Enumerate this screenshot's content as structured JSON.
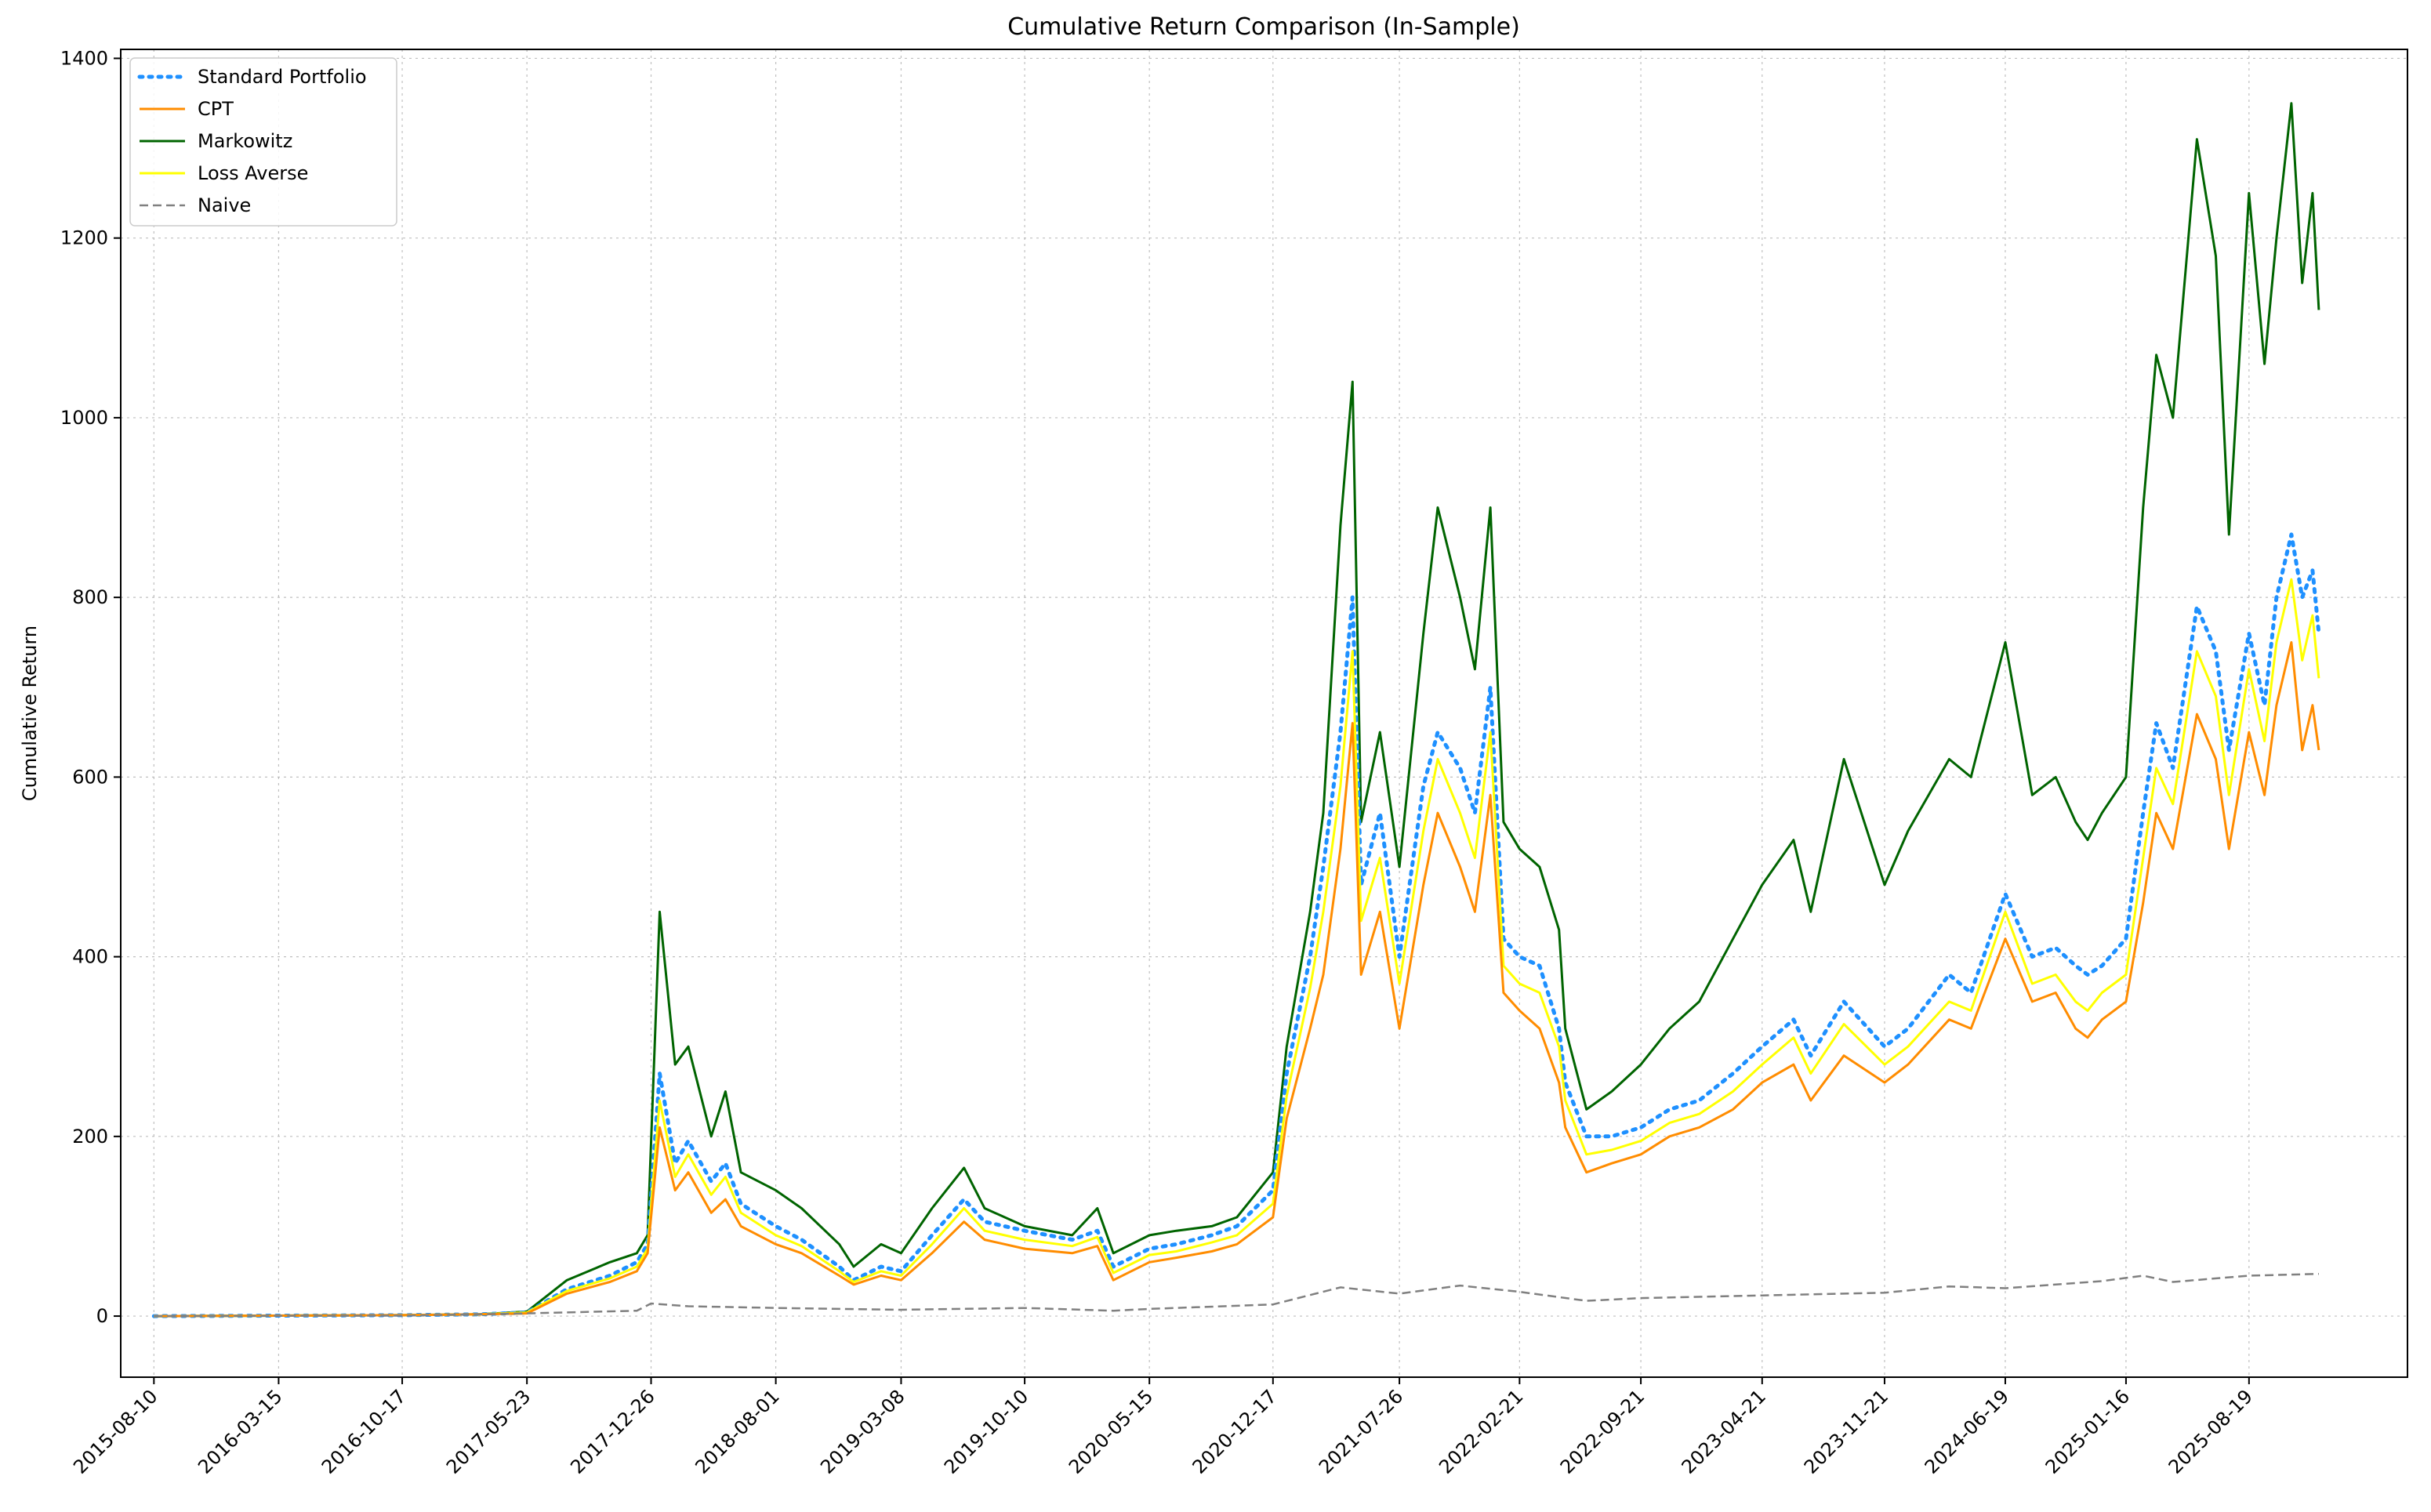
{
  "chart_data": {
    "type": "line",
    "title": "Cumulative Return Comparison (In-Sample)",
    "xlabel": "",
    "ylabel": "Cumulative Return",
    "ylim": [
      -68,
      1410
    ],
    "yticks": [
      0,
      200,
      400,
      600,
      800,
      1000,
      1200,
      1400
    ],
    "xticks": [
      "2015-08-10",
      "2016-03-15",
      "2016-10-17",
      "2017-05-23",
      "2017-12-26",
      "2018-08-01",
      "2019-03-08",
      "2019-10-10",
      "2020-05-15",
      "2020-12-17",
      "2021-07-26",
      "2022-02-21",
      "2022-09-21",
      "2023-04-21",
      "2023-11-21",
      "2024-06-19",
      "2025-01-16",
      "2025-08-19"
    ],
    "xlim": [
      "2015-06-13",
      "2026-05-23"
    ],
    "grid": true,
    "legend_position": "upper-left",
    "series": [
      {
        "name": "Standard Portfolio",
        "color": "#1e90ff",
        "style": "dotted",
        "x": [
          "2015-08-10",
          "2016-03-15",
          "2016-10-17",
          "2017-03-01",
          "2017-05-23",
          "2017-08-01",
          "2017-10-15",
          "2017-12-01",
          "2017-12-20",
          "2018-01-10",
          "2018-02-06",
          "2018-03-01",
          "2018-04-10",
          "2018-05-05",
          "2018-06-01",
          "2018-08-01",
          "2018-09-15",
          "2018-11-20",
          "2018-12-15",
          "2019-02-01",
          "2019-03-08",
          "2019-05-01",
          "2019-06-26",
          "2019-08-01",
          "2019-10-10",
          "2020-01-01",
          "2020-02-14",
          "2020-03-13",
          "2020-05-15",
          "2020-07-01",
          "2020-09-01",
          "2020-10-15",
          "2020-12-17",
          "2021-01-10",
          "2021-02-20",
          "2021-03-15",
          "2021-04-14",
          "2021-05-05",
          "2021-05-20",
          "2021-06-22",
          "2021-07-26",
          "2021-09-06",
          "2021-10-01",
          "2021-11-09",
          "2021-12-05",
          "2022-01-01",
          "2022-01-24",
          "2022-02-21",
          "2022-03-28",
          "2022-05-01",
          "2022-05-12",
          "2022-06-18",
          "2022-08-01",
          "2022-09-21",
          "2022-11-10",
          "2023-01-01",
          "2023-03-01",
          "2023-04-21",
          "2023-06-15",
          "2023-07-15",
          "2023-09-11",
          "2023-11-21",
          "2024-01-01",
          "2024-03-13",
          "2024-04-20",
          "2024-06-19",
          "2024-08-05",
          "2024-09-15",
          "2024-10-20",
          "2024-11-10",
          "2024-12-05",
          "2025-01-16",
          "2025-02-15",
          "2025-03-10",
          "2025-04-08",
          "2025-05-20",
          "2025-06-22",
          "2025-07-15",
          "2025-08-19",
          "2025-09-15",
          "2025-10-06",
          "2025-11-01",
          "2025-11-20",
          "2025-12-08",
          "2025-12-19"
        ],
        "y": [
          0,
          0.5,
          1,
          2,
          4,
          30,
          45,
          60,
          80,
          270,
          170,
          195,
          150,
          170,
          125,
          100,
          85,
          55,
          40,
          55,
          50,
          90,
          130,
          105,
          95,
          85,
          95,
          55,
          75,
          80,
          90,
          100,
          140,
          270,
          400,
          500,
          650,
          800,
          480,
          560,
          400,
          590,
          650,
          610,
          560,
          700,
          420,
          400,
          390,
          320,
          260,
          200,
          200,
          210,
          230,
          240,
          270,
          300,
          330,
          290,
          350,
          300,
          320,
          380,
          360,
          470,
          400,
          410,
          390,
          380,
          390,
          420,
          560,
          660,
          610,
          790,
          740,
          630,
          760,
          680,
          800,
          870,
          800,
          830,
          760
        ]
      },
      {
        "name": "CPT",
        "color": "#ff8c00",
        "style": "solid",
        "x": [
          "2015-08-10",
          "2016-03-15",
          "2016-10-17",
          "2017-03-01",
          "2017-05-23",
          "2017-08-01",
          "2017-10-15",
          "2017-12-01",
          "2017-12-20",
          "2018-01-10",
          "2018-02-06",
          "2018-03-01",
          "2018-04-10",
          "2018-05-05",
          "2018-06-01",
          "2018-08-01",
          "2018-09-15",
          "2018-11-20",
          "2018-12-15",
          "2019-02-01",
          "2019-03-08",
          "2019-05-01",
          "2019-06-26",
          "2019-08-01",
          "2019-10-10",
          "2020-01-01",
          "2020-02-14",
          "2020-03-13",
          "2020-05-15",
          "2020-07-01",
          "2020-09-01",
          "2020-10-15",
          "2020-12-17",
          "2021-01-10",
          "2021-02-20",
          "2021-03-15",
          "2021-04-14",
          "2021-05-05",
          "2021-05-20",
          "2021-06-22",
          "2021-07-26",
          "2021-09-06",
          "2021-10-01",
          "2021-11-09",
          "2021-12-05",
          "2022-01-01",
          "2022-01-24",
          "2022-02-21",
          "2022-03-28",
          "2022-05-01",
          "2022-05-12",
          "2022-06-18",
          "2022-08-01",
          "2022-09-21",
          "2022-11-10",
          "2023-01-01",
          "2023-03-01",
          "2023-04-21",
          "2023-06-15",
          "2023-07-15",
          "2023-09-11",
          "2023-11-21",
          "2024-01-01",
          "2024-03-13",
          "2024-04-20",
          "2024-06-19",
          "2024-08-05",
          "2024-09-15",
          "2024-10-20",
          "2024-11-10",
          "2024-12-05",
          "2025-01-16",
          "2025-02-15",
          "2025-03-10",
          "2025-04-08",
          "2025-05-20",
          "2025-06-22",
          "2025-07-15",
          "2025-08-19",
          "2025-09-15",
          "2025-10-06",
          "2025-11-01",
          "2025-11-20",
          "2025-12-08",
          "2025-12-19"
        ],
        "y": [
          0,
          0.5,
          1,
          2,
          3,
          25,
          38,
          50,
          70,
          210,
          140,
          160,
          115,
          130,
          100,
          80,
          70,
          45,
          35,
          45,
          40,
          70,
          105,
          85,
          75,
          70,
          78,
          40,
          60,
          65,
          72,
          80,
          110,
          220,
          320,
          380,
          520,
          660,
          380,
          450,
          320,
          480,
          560,
          500,
          450,
          580,
          360,
          340,
          320,
          260,
          210,
          160,
          170,
          180,
          200,
          210,
          230,
          260,
          280,
          240,
          290,
          260,
          280,
          330,
          320,
          420,
          350,
          360,
          320,
          310,
          330,
          350,
          460,
          560,
          520,
          670,
          620,
          520,
          650,
          580,
          680,
          750,
          630,
          680,
          630
        ]
      },
      {
        "name": "Markowitz",
        "color": "#006400",
        "style": "solid",
        "x": [
          "2015-08-10",
          "2016-03-15",
          "2016-10-17",
          "2017-03-01",
          "2017-05-23",
          "2017-08-01",
          "2017-10-15",
          "2017-12-01",
          "2017-12-20",
          "2018-01-10",
          "2018-02-06",
          "2018-03-01",
          "2018-04-10",
          "2018-05-05",
          "2018-06-01",
          "2018-08-01",
          "2018-09-15",
          "2018-11-20",
          "2018-12-15",
          "2019-02-01",
          "2019-03-08",
          "2019-05-01",
          "2019-06-26",
          "2019-08-01",
          "2019-10-10",
          "2020-01-01",
          "2020-02-14",
          "2020-03-13",
          "2020-05-15",
          "2020-07-01",
          "2020-09-01",
          "2020-10-15",
          "2020-12-17",
          "2021-01-10",
          "2021-02-20",
          "2021-03-15",
          "2021-04-14",
          "2021-05-05",
          "2021-05-20",
          "2021-06-22",
          "2021-07-26",
          "2021-09-06",
          "2021-10-01",
          "2021-11-09",
          "2021-12-05",
          "2022-01-01",
          "2022-01-24",
          "2022-02-21",
          "2022-03-28",
          "2022-05-01",
          "2022-05-12",
          "2022-06-18",
          "2022-08-01",
          "2022-09-21",
          "2022-11-10",
          "2023-01-01",
          "2023-03-01",
          "2023-04-21",
          "2023-06-15",
          "2023-07-15",
          "2023-09-11",
          "2023-11-21",
          "2024-01-01",
          "2024-03-13",
          "2024-04-20",
          "2024-06-19",
          "2024-08-05",
          "2024-09-15",
          "2024-10-20",
          "2024-11-10",
          "2024-12-05",
          "2025-01-16",
          "2025-02-15",
          "2025-03-10",
          "2025-04-08",
          "2025-05-20",
          "2025-06-22",
          "2025-07-15",
          "2025-08-19",
          "2025-09-15",
          "2025-10-06",
          "2025-11-01",
          "2025-11-20",
          "2025-12-08",
          "2025-12-19"
        ],
        "y": [
          0,
          0.5,
          1,
          2,
          5,
          40,
          60,
          70,
          90,
          450,
          280,
          300,
          200,
          250,
          160,
          140,
          120,
          80,
          55,
          80,
          70,
          120,
          165,
          120,
          100,
          90,
          120,
          70,
          90,
          95,
          100,
          110,
          160,
          300,
          450,
          560,
          880,
          1040,
          550,
          650,
          500,
          760,
          900,
          800,
          720,
          900,
          550,
          520,
          500,
          430,
          320,
          230,
          250,
          280,
          320,
          350,
          420,
          480,
          530,
          450,
          620,
          480,
          540,
          620,
          600,
          750,
          580,
          600,
          550,
          530,
          560,
          600,
          900,
          1070,
          1000,
          1310,
          1180,
          870,
          1250,
          1060,
          1200,
          1350,
          1150,
          1250,
          1120
        ]
      },
      {
        "name": "Loss Averse",
        "color": "#ffff00",
        "style": "solid",
        "x": [
          "2015-08-10",
          "2016-03-15",
          "2016-10-17",
          "2017-03-01",
          "2017-05-23",
          "2017-08-01",
          "2017-10-15",
          "2017-12-01",
          "2017-12-20",
          "2018-01-10",
          "2018-02-06",
          "2018-03-01",
          "2018-04-10",
          "2018-05-05",
          "2018-06-01",
          "2018-08-01",
          "2018-09-15",
          "2018-11-20",
          "2018-12-15",
          "2019-02-01",
          "2019-03-08",
          "2019-05-01",
          "2019-06-26",
          "2019-08-01",
          "2019-10-10",
          "2020-01-01",
          "2020-02-14",
          "2020-03-13",
          "2020-05-15",
          "2020-07-01",
          "2020-09-01",
          "2020-10-15",
          "2020-12-17",
          "2021-01-10",
          "2021-02-20",
          "2021-03-15",
          "2021-04-14",
          "2021-05-05",
          "2021-05-20",
          "2021-06-22",
          "2021-07-26",
          "2021-09-06",
          "2021-10-01",
          "2021-11-09",
          "2021-12-05",
          "2022-01-01",
          "2022-01-24",
          "2022-02-21",
          "2022-03-28",
          "2022-05-01",
          "2022-05-12",
          "2022-06-18",
          "2022-08-01",
          "2022-09-21",
          "2022-11-10",
          "2023-01-01",
          "2023-03-01",
          "2023-04-21",
          "2023-06-15",
          "2023-07-15",
          "2023-09-11",
          "2023-11-21",
          "2024-01-01",
          "2024-03-13",
          "2024-04-20",
          "2024-06-19",
          "2024-08-05",
          "2024-09-15",
          "2024-10-20",
          "2024-11-10",
          "2024-12-05",
          "2025-01-16",
          "2025-02-15",
          "2025-03-10",
          "2025-04-08",
          "2025-05-20",
          "2025-06-22",
          "2025-07-15",
          "2025-08-19",
          "2025-09-15",
          "2025-10-06",
          "2025-11-01",
          "2025-11-20",
          "2025-12-08",
          "2025-12-19"
        ],
        "y": [
          0,
          0.5,
          1,
          2,
          4,
          28,
          42,
          55,
          75,
          240,
          155,
          180,
          135,
          155,
          115,
          90,
          78,
          50,
          38,
          50,
          45,
          80,
          120,
          95,
          85,
          78,
          88,
          48,
          68,
          72,
          82,
          90,
          125,
          245,
          365,
          450,
          590,
          740,
          440,
          510,
          370,
          540,
          620,
          560,
          510,
          650,
          390,
          370,
          360,
          300,
          240,
          180,
          185,
          195,
          215,
          225,
          250,
          280,
          310,
          270,
          325,
          280,
          300,
          350,
          340,
          450,
          370,
          380,
          350,
          340,
          360,
          380,
          510,
          610,
          570,
          740,
          690,
          580,
          720,
          640,
          750,
          820,
          730,
          780,
          710
        ]
      },
      {
        "name": "Naive",
        "color": "#808080",
        "style": "dashed",
        "x": [
          "2015-08-10",
          "2016-03-15",
          "2016-10-17",
          "2017-05-23",
          "2017-12-01",
          "2017-12-26",
          "2018-03-01",
          "2018-08-01",
          "2019-03-08",
          "2019-10-10",
          "2020-03-13",
          "2020-05-15",
          "2020-12-17",
          "2021-04-14",
          "2021-07-26",
          "2021-11-09",
          "2022-02-21",
          "2022-06-18",
          "2022-09-21",
          "2023-04-21",
          "2023-11-21",
          "2024-03-13",
          "2024-06-19",
          "2024-12-05",
          "2025-02-15",
          "2025-04-08",
          "2025-08-19",
          "2025-12-19"
        ],
        "y": [
          0,
          0.3,
          0.5,
          3,
          6,
          14,
          11,
          9,
          7,
          9,
          6,
          8,
          13,
          32,
          25,
          34,
          27,
          17,
          20,
          23,
          26,
          33,
          31,
          39,
          45,
          38,
          45,
          47
        ]
      }
    ]
  }
}
